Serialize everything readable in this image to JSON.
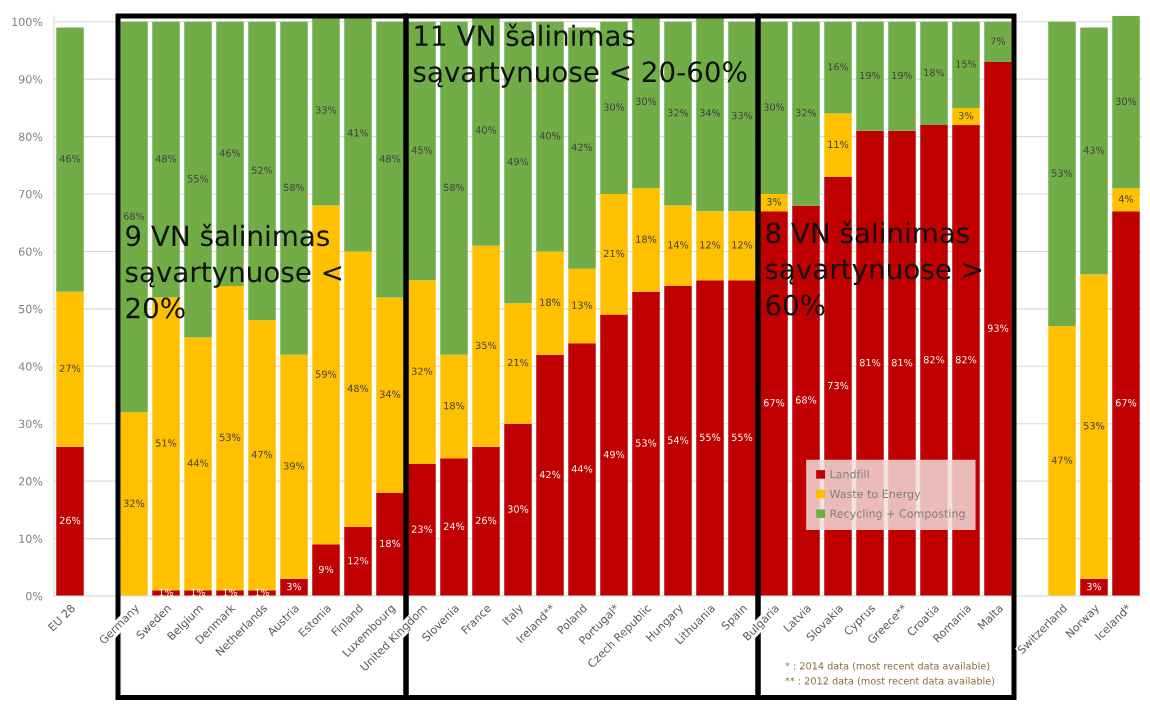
{
  "chart_data": {
    "type": "bar",
    "stacked": true,
    "categories": [
      "EU 28",
      null,
      "Germany",
      "Sweden",
      "Belgium",
      "Denmark",
      "Netherlands",
      "Austria",
      "Estonia",
      "Finland",
      "Luxembourg",
      "United Kingdom",
      "Slovenia",
      "France",
      "Italy",
      "Ireland**",
      "Poland",
      "Portugal*",
      "Czech Republic",
      "Hungary",
      "Lithuania",
      "Spain",
      "Bulgaria",
      "Latvia",
      "Slovakia",
      "Cyprus",
      "Greece**",
      "Croatia",
      "Romania",
      "Malta",
      null,
      "Switzerland",
      "Norway",
      "Iceland*"
    ],
    "series": [
      {
        "name": "Landfill",
        "color": "#c00000",
        "values": [
          26,
          null,
          0,
          1,
          1,
          1,
          1,
          3,
          9,
          12,
          18,
          23,
          24,
          26,
          30,
          42,
          44,
          49,
          53,
          54,
          55,
          55,
          67,
          68,
          73,
          81,
          81,
          82,
          82,
          93,
          null,
          0,
          3,
          67
        ],
        "value_labels": [
          "26%",
          null,
          null,
          "1%",
          "1%",
          "1%",
          "1%",
          "3%",
          "9%",
          "12%",
          "18%",
          "23%",
          "24%",
          "26%",
          "30%",
          "42%",
          "44%",
          "49%",
          "53%",
          "54%",
          "55%",
          "55%",
          "67%",
          "68%",
          "73%",
          "81%",
          "81%",
          "82%",
          "82%",
          "93%",
          null,
          null,
          "3%",
          "67%"
        ]
      },
      {
        "name": "Waste to Energy",
        "color": "#ffc000",
        "values": [
          27,
          null,
          32,
          51,
          44,
          53,
          47,
          39,
          59,
          48,
          34,
          32,
          18,
          35,
          21,
          18,
          13,
          21,
          18,
          14,
          12,
          12,
          3,
          0,
          11,
          0,
          0,
          0,
          3,
          0,
          null,
          47,
          53,
          4
        ],
        "value_labels": [
          "27%",
          null,
          "32%",
          "51%",
          "44%",
          "53%",
          "47%",
          "39%",
          "59%",
          "48%",
          "34%",
          "32%",
          "18%",
          "35%",
          "21%",
          "18%",
          "13%",
          "21%",
          "18%",
          "14%",
          "12%",
          "12%",
          "3%",
          null,
          "11%",
          null,
          null,
          null,
          "3%",
          null,
          null,
          "47%",
          "53%",
          "4%"
        ]
      },
      {
        "name": "Recycling + Composting",
        "color": "#70ad47",
        "values": [
          46,
          null,
          68,
          48,
          55,
          46,
          52,
          58,
          33,
          41,
          48,
          45,
          58,
          40,
          49,
          40,
          42,
          30,
          30,
          32,
          34,
          33,
          30,
          32,
          16,
          19,
          19,
          18,
          15,
          7,
          null,
          53,
          43,
          30
        ],
        "value_labels": [
          "46%",
          null,
          "68%",
          "48%",
          "55%",
          "46%",
          "52%",
          "58%",
          "33%",
          "41%",
          "48%",
          "45%",
          "58%",
          "40%",
          "49%",
          "40%",
          "42%",
          "30%",
          "30%",
          "32%",
          "34%",
          "33%",
          "30%",
          "32%",
          "16%",
          "19%",
          "19%",
          "18%",
          "15%",
          "7%",
          null,
          "53%",
          "43%",
          "30%"
        ]
      }
    ],
    "ylim": [
      0,
      101
    ],
    "yticks": [
      {
        "value": 0,
        "label": "0%"
      },
      {
        "value": 10,
        "label": "10%"
      },
      {
        "value": 20,
        "label": "20%"
      },
      {
        "value": 30,
        "label": "30%"
      },
      {
        "value": 40,
        "label": "40%"
      },
      {
        "value": 50,
        "label": "50%"
      },
      {
        "value": 60,
        "label": "60%"
      },
      {
        "value": 70,
        "label": "70%"
      },
      {
        "value": 80,
        "label": "80%"
      },
      {
        "value": 90,
        "label": "90%"
      },
      {
        "value": 100,
        "label": "100%"
      }
    ],
    "grid": "y",
    "legend": "bottom right",
    "annotations": [
      "9 VN šalinimas sąvartynuose < 20%",
      "11 VN šalinimas sąvartynuose < 20-60%",
      "8 VN šalinimas sąvartynuose > 60%",
      "* : 2014 data (most recent data available)",
      "** : 2012 data (most recent data available)"
    ]
  }
}
